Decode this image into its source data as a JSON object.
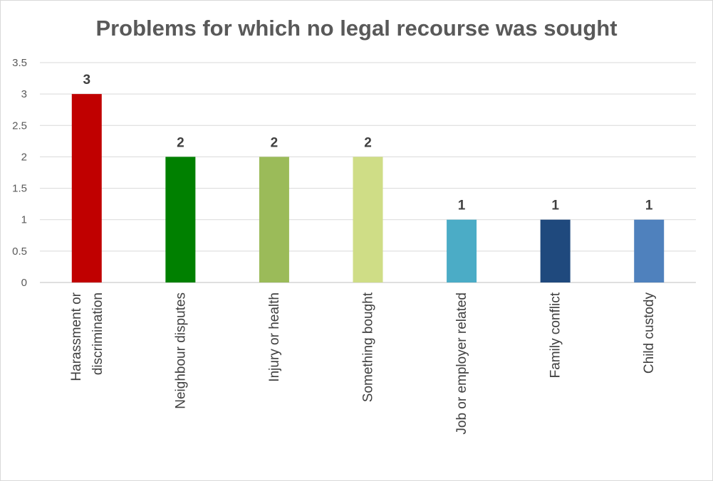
{
  "chart_data": {
    "type": "bar",
    "title": "Problems for which no legal recourse was sought",
    "xlabel": "",
    "ylabel": "",
    "ylim": [
      0,
      3.5
    ],
    "yticks": [
      "0",
      "0.5",
      "1",
      "1.5",
      "2",
      "2.5",
      "3",
      "3.5"
    ],
    "grid": true,
    "categories": [
      [
        "Harassment or",
        "discrimination"
      ],
      [
        "Neighbour disputes"
      ],
      [
        "Injury or health"
      ],
      [
        "Something bought"
      ],
      [
        "Job or employer related"
      ],
      [
        "Family conflict"
      ],
      [
        "Child custody"
      ]
    ],
    "values": [
      3,
      2,
      2,
      2,
      1,
      1,
      1
    ],
    "data_labels": [
      "3",
      "2",
      "2",
      "2",
      "1",
      "1",
      "1"
    ],
    "colors": [
      "#c00000",
      "#008000",
      "#9bbb59",
      "#cfdd86",
      "#4bacc6",
      "#1f497d",
      "#4f81bd"
    ]
  }
}
